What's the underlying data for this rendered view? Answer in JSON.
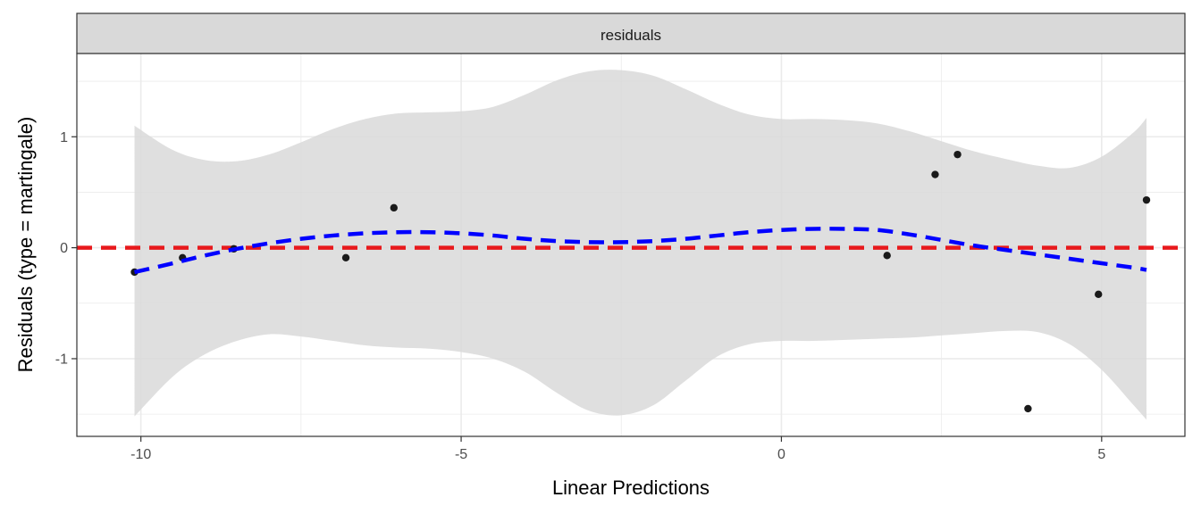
{
  "chart_data": {
    "type": "scatter",
    "facet_label": "residuals",
    "xlabel": "Linear Predictions",
    "ylabel": "Residuals (type = martingale)",
    "xlim": [
      -11.0,
      6.3
    ],
    "ylim": [
      -1.7,
      1.75
    ],
    "x_ticks": [
      -10,
      -5,
      0,
      5
    ],
    "x_tick_labels": [
      "-10",
      "-5",
      "0",
      "5"
    ],
    "y_ticks": [
      -1,
      0,
      1
    ],
    "y_tick_labels": [
      "-1",
      "0",
      "1"
    ],
    "grid": true,
    "points": [
      {
        "x": -10.1,
        "y": -0.22
      },
      {
        "x": -9.35,
        "y": -0.09
      },
      {
        "x": -8.55,
        "y": -0.01
      },
      {
        "x": -6.8,
        "y": -0.09
      },
      {
        "x": -6.05,
        "y": 0.36
      },
      {
        "x": 1.65,
        "y": -0.07
      },
      {
        "x": 2.4,
        "y": 0.66
      },
      {
        "x": 2.75,
        "y": 0.84
      },
      {
        "x": 3.85,
        "y": -1.45
      },
      {
        "x": 4.95,
        "y": -0.42
      },
      {
        "x": 5.7,
        "y": 0.43
      }
    ],
    "smooth": {
      "color": "#0000ff",
      "linestyle": "dashed",
      "x": [
        -10.1,
        -9.5,
        -9.0,
        -8.5,
        -8.0,
        -7.5,
        -7.0,
        -6.5,
        -6.0,
        -5.5,
        -5.0,
        -4.5,
        -4.0,
        -3.5,
        -3.0,
        -2.5,
        -2.0,
        -1.5,
        -1.0,
        -0.5,
        0.0,
        0.5,
        1.0,
        1.5,
        2.0,
        2.5,
        3.0,
        3.5,
        4.0,
        4.5,
        5.0,
        5.5,
        5.7
      ],
      "y": [
        -0.22,
        -0.14,
        -0.07,
        -0.01,
        0.04,
        0.08,
        0.11,
        0.13,
        0.14,
        0.14,
        0.13,
        0.11,
        0.08,
        0.06,
        0.05,
        0.05,
        0.06,
        0.08,
        0.11,
        0.14,
        0.16,
        0.17,
        0.17,
        0.16,
        0.12,
        0.07,
        0.02,
        -0.02,
        -0.06,
        -0.1,
        -0.14,
        -0.18,
        -0.2
      ]
    },
    "confidence_band": {
      "color": "#d9d9d9",
      "x": [
        -10.1,
        -9.5,
        -9.0,
        -8.5,
        -8.0,
        -7.5,
        -7.0,
        -6.5,
        -6.0,
        -5.5,
        -5.0,
        -4.5,
        -4.0,
        -3.5,
        -3.0,
        -2.5,
        -2.0,
        -1.5,
        -1.0,
        -0.5,
        0.0,
        0.5,
        1.0,
        1.5,
        2.0,
        2.5,
        3.0,
        3.5,
        4.0,
        4.5,
        5.0,
        5.5,
        5.7
      ],
      "upper": [
        1.1,
        0.88,
        0.79,
        0.78,
        0.84,
        0.95,
        1.07,
        1.16,
        1.21,
        1.22,
        1.23,
        1.27,
        1.38,
        1.51,
        1.59,
        1.6,
        1.55,
        1.43,
        1.3,
        1.2,
        1.16,
        1.16,
        1.15,
        1.12,
        1.05,
        0.96,
        0.87,
        0.8,
        0.74,
        0.72,
        0.82,
        1.04,
        1.17
      ],
      "lower": [
        -1.52,
        -1.16,
        -0.96,
        -0.84,
        -0.78,
        -0.8,
        -0.84,
        -0.88,
        -0.9,
        -0.91,
        -0.94,
        -1.0,
        -1.12,
        -1.31,
        -1.47,
        -1.51,
        -1.42,
        -1.2,
        -0.98,
        -0.87,
        -0.84,
        -0.84,
        -0.83,
        -0.82,
        -0.81,
        -0.79,
        -0.77,
        -0.75,
        -0.76,
        -0.87,
        -1.1,
        -1.42,
        -1.55
      ]
    },
    "reference_line": {
      "y": 0,
      "color": "#e8191c",
      "linestyle": "dashed"
    },
    "point_color": "#1a1a1a",
    "strip_color": "#d9d9d9",
    "panel_border_color": "#333333",
    "grid_color": "#ebebeb"
  }
}
